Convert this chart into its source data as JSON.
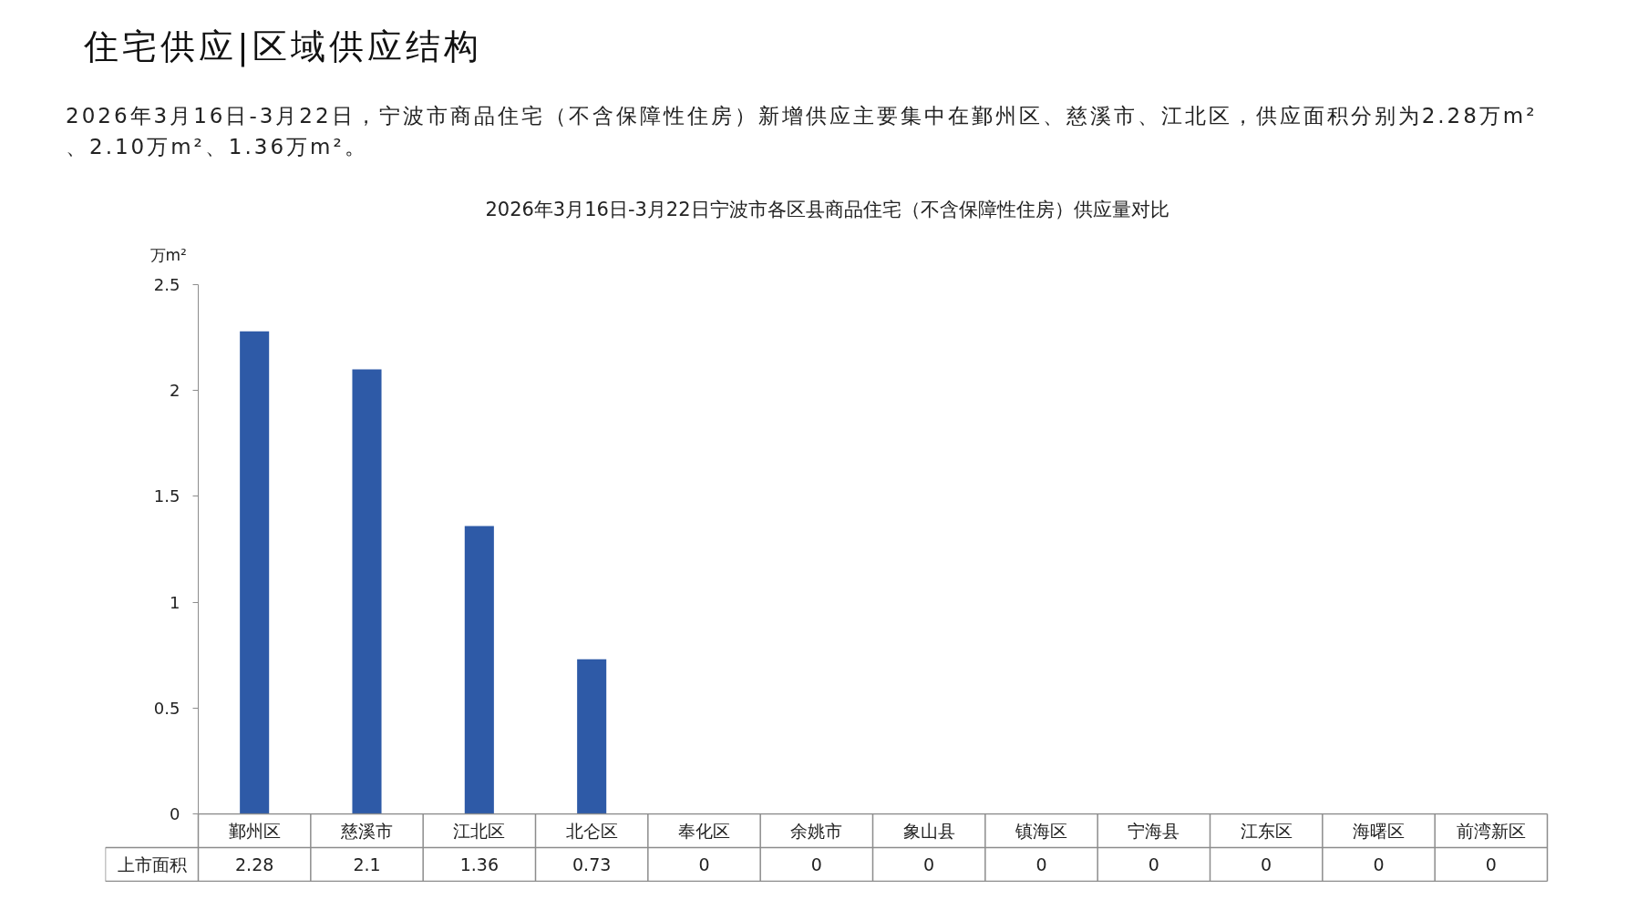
{
  "chart_data": {
    "type": "bar",
    "title": "2026年3月16日-3月22日宁波市各区县商品住宅（不含保障性住房）供应量对比",
    "ylabel": "万m²",
    "annotations": [
      "住宅供应|区域供应结构",
      "2026年3月16日-3月22日，宁波市商品住宅（不含保障性住房）新增供应主要集中在鄞州区、慈溪市、江北区，供应面积分别为2.28万m²、2.10万m²、1.36万m²。"
    ],
    "categories": [
      "鄞州区",
      "慈溪市",
      "江北区",
      "北仑区",
      "奉化区",
      "余姚市",
      "象山县",
      "镇海区",
      "宁海县",
      "江东区",
      "海曙区",
      "前湾新区"
    ],
    "series": [
      {
        "name": "上市面积",
        "color": "#2e5aa7",
        "values": [
          2.28,
          2.1,
          1.36,
          0.73,
          0,
          0,
          0,
          0,
          0,
          0,
          0,
          0
        ]
      }
    ],
    "ylim": [
      0,
      2.5
    ],
    "yticks": [
      0,
      0.5,
      1,
      1.5,
      2,
      2.5
    ],
    "data_labels": true
  }
}
